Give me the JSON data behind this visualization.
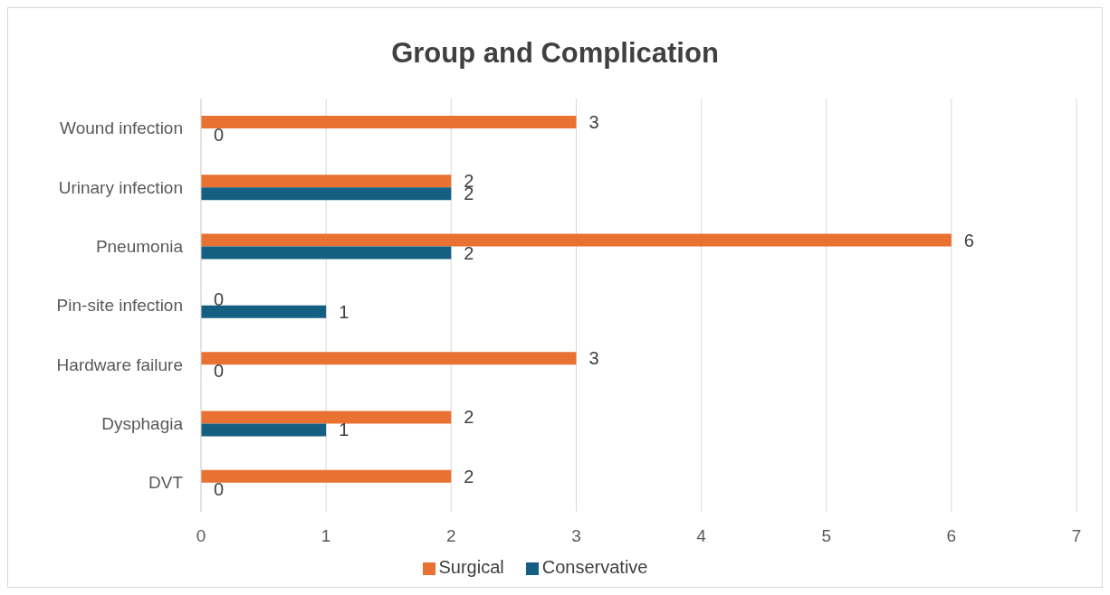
{
  "chart_data": {
    "type": "bar",
    "orientation": "horizontal",
    "title": "Group and Complication",
    "categories": [
      "Wound infection",
      "Urinary infection",
      "Pneumonia",
      "Pin-site infection",
      "Hardware failure",
      "Dysphagia",
      "DVT"
    ],
    "series": [
      {
        "name": "Surgical",
        "color": "#e97132",
        "values": [
          3,
          2,
          6,
          0,
          3,
          2,
          2
        ]
      },
      {
        "name": "Conservative",
        "color": "#156082",
        "values": [
          0,
          2,
          2,
          1,
          0,
          1,
          0
        ]
      }
    ],
    "xlim": [
      0,
      7
    ],
    "xticks": [
      0,
      1,
      2,
      3,
      4,
      5,
      6,
      7
    ],
    "grid": "x",
    "legend": "bottom",
    "data_labels": true
  }
}
